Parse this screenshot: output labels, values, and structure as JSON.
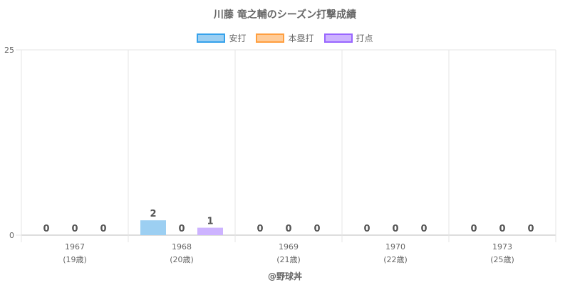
{
  "chart_data": {
    "type": "bar",
    "title": "川藤 竜之輔のシーズン打撃成績",
    "categories": [
      {
        "year": "1967",
        "age": "(19歳)"
      },
      {
        "year": "1968",
        "age": "(20歳)"
      },
      {
        "year": "1969",
        "age": "(21歳)"
      },
      {
        "year": "1970",
        "age": "(22歳)"
      },
      {
        "year": "1973",
        "age": "(25歳)"
      }
    ],
    "series": [
      {
        "name": "安打",
        "values": [
          0,
          2,
          0,
          0,
          0
        ],
        "fill": "#9ccff2",
        "border": "#36a2eb"
      },
      {
        "name": "本塁打",
        "values": [
          0,
          0,
          0,
          0,
          0
        ],
        "fill": "#ffcc99",
        "border": "#ff9f40"
      },
      {
        "name": "打点",
        "values": [
          0,
          1,
          0,
          0,
          0
        ],
        "fill": "#cdb3ff",
        "border": "#9966ff"
      }
    ],
    "ylim": [
      0,
      25
    ],
    "yticks": [
      0,
      25
    ],
    "grid": true,
    "legend_position": "top"
  },
  "credit": "@野球丼"
}
